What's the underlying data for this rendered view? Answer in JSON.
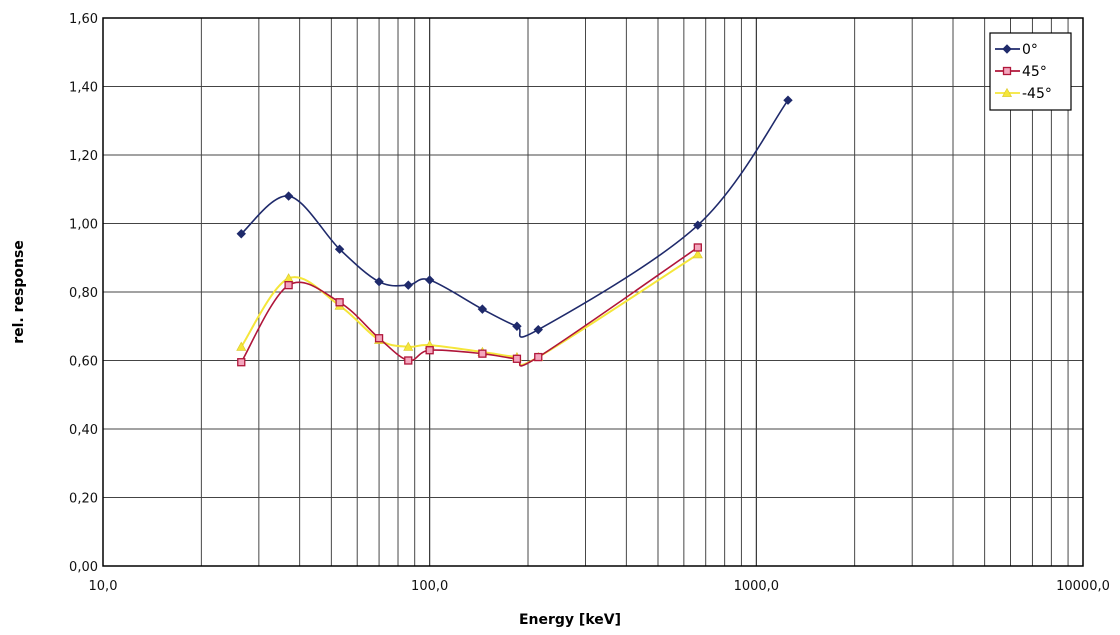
{
  "chart_data": {
    "type": "line",
    "title": "",
    "xlabel": "Energy [keV]",
    "ylabel": "rel. response",
    "x_scale": "log",
    "xlim": [
      10,
      10000
    ],
    "ylim": [
      0,
      1.6
    ],
    "x_ticks": [
      "10,0",
      "100,0",
      "1000,0",
      "10000,0"
    ],
    "y_ticks": [
      "0,00",
      "0,20",
      "0,40",
      "0,60",
      "0,80",
      "1,00",
      "1,20",
      "1,40",
      "1,60"
    ],
    "grid": true,
    "legend_position": "top-right",
    "series": [
      {
        "name": "0°",
        "color": "#1f2a6b",
        "marker": "diamond",
        "x": [
          26.5,
          37,
          53,
          70,
          86,
          100,
          145,
          185,
          215,
          662,
          1250
        ],
        "y": [
          0.97,
          1.08,
          0.925,
          0.83,
          0.82,
          0.835,
          0.75,
          0.7,
          0.69,
          0.995,
          1.36
        ]
      },
      {
        "name": "45°",
        "color": "#b0163a",
        "marker": "square",
        "x": [
          26.5,
          37,
          53,
          70,
          86,
          100,
          145,
          185,
          215,
          662
        ],
        "y": [
          0.595,
          0.82,
          0.77,
          0.665,
          0.6,
          0.63,
          0.62,
          0.605,
          0.61,
          0.93
        ]
      },
      {
        "name": "-45°",
        "color": "#f5e63a",
        "marker": "triangle",
        "x": [
          26.5,
          37,
          53,
          70,
          86,
          100,
          145,
          185,
          215,
          662
        ],
        "y": [
          0.64,
          0.84,
          0.76,
          0.66,
          0.64,
          0.645,
          0.625,
          0.61,
          0.61,
          0.91
        ]
      }
    ]
  }
}
